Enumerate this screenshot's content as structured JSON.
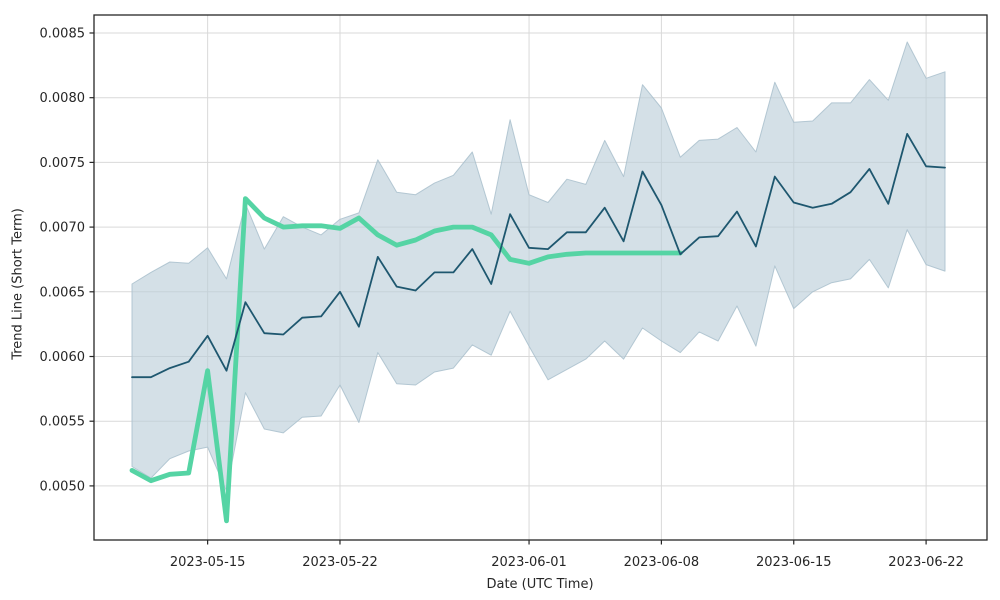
{
  "chart_data": {
    "type": "line",
    "title": "",
    "xlabel": "Date (UTC Time)",
    "ylabel": "Trend Line (Short Term)",
    "x": [
      "2023-05-11",
      "2023-05-12",
      "2023-05-13",
      "2023-05-14",
      "2023-05-15",
      "2023-05-16",
      "2023-05-17",
      "2023-05-18",
      "2023-05-19",
      "2023-05-20",
      "2023-05-21",
      "2023-05-22",
      "2023-05-23",
      "2023-05-24",
      "2023-05-25",
      "2023-05-26",
      "2023-05-27",
      "2023-05-28",
      "2023-05-29",
      "2023-05-30",
      "2023-05-31",
      "2023-06-01",
      "2023-06-02",
      "2023-06-03",
      "2023-06-04",
      "2023-06-05",
      "2023-06-06",
      "2023-06-07",
      "2023-06-08",
      "2023-06-09",
      "2023-06-10",
      "2023-06-11",
      "2023-06-12",
      "2023-06-13",
      "2023-06-14",
      "2023-06-15",
      "2023-06-16",
      "2023-06-17",
      "2023-06-18",
      "2023-06-19",
      "2023-06-20",
      "2023-06-21",
      "2023-06-22",
      "2023-06-23"
    ],
    "series": [
      {
        "name": "trend-line",
        "color": "#1e576f",
        "width": 1.8,
        "values": [
          0.00584,
          0.00584,
          0.00591,
          0.00596,
          0.00616,
          0.00589,
          0.00642,
          0.00618,
          0.00617,
          0.0063,
          0.00631,
          0.0065,
          0.00623,
          0.00677,
          0.00654,
          0.00651,
          0.00665,
          0.00665,
          0.00683,
          0.00656,
          0.0071,
          0.00684,
          0.00683,
          0.00696,
          0.00696,
          0.00715,
          0.00689,
          0.00743,
          0.00717,
          0.00679,
          0.00692,
          0.00693,
          0.00712,
          0.00685,
          0.00739,
          0.00719,
          0.00715,
          0.00718,
          0.00727,
          0.00745,
          0.00718,
          0.00772,
          0.00747,
          0.00746
        ]
      },
      {
        "name": "signal-line",
        "color": "#55d4a4",
        "width": 4.8,
        "values": [
          0.00512,
          0.00504,
          0.00509,
          0.0051,
          0.00589,
          0.00473,
          0.00722,
          0.00707,
          0.007,
          0.00701,
          0.00701,
          0.00699,
          0.00707,
          0.00694,
          0.00686,
          0.0069,
          0.00697,
          0.007,
          0.007,
          0.00694,
          0.00675,
          0.00672,
          0.00677,
          0.00679,
          0.0068,
          0.0068,
          0.0068,
          0.0068,
          0.0068,
          0.0068,
          null,
          null,
          null,
          null,
          null,
          null,
          null,
          null,
          null,
          null,
          null,
          null,
          null,
          null
        ]
      }
    ],
    "band": {
      "name": "confidence-band",
      "fill": "#b9cdd8",
      "fill_opacity": 0.62,
      "edge": "#a9bfcc",
      "upper": [
        0.00656,
        0.00665,
        0.00673,
        0.00672,
        0.00684,
        0.0066,
        0.00718,
        0.00683,
        0.00708,
        0.007,
        0.00694,
        0.00706,
        0.00711,
        0.00752,
        0.00727,
        0.00725,
        0.00734,
        0.0074,
        0.00758,
        0.0071,
        0.00783,
        0.00725,
        0.00719,
        0.00737,
        0.00733,
        0.00767,
        0.00739,
        0.0081,
        0.00792,
        0.00754,
        0.00767,
        0.00768,
        0.00777,
        0.00758,
        0.00812,
        0.00781,
        0.00782,
        0.00796,
        0.00796,
        0.00814,
        0.00798,
        0.00843,
        0.00815,
        0.0082
      ],
      "lower": [
        0.00515,
        0.00506,
        0.00521,
        0.00527,
        0.0053,
        0.00496,
        0.00572,
        0.00544,
        0.00541,
        0.00553,
        0.00554,
        0.00578,
        0.00549,
        0.00603,
        0.00579,
        0.00578,
        0.00588,
        0.00591,
        0.00609,
        0.00601,
        0.00635,
        0.00608,
        0.00582,
        0.0059,
        0.00598,
        0.00612,
        0.00598,
        0.00622,
        0.00612,
        0.00603,
        0.00619,
        0.00612,
        0.00639,
        0.00608,
        0.0067,
        0.00637,
        0.0065,
        0.00657,
        0.0066,
        0.00675,
        0.00653,
        0.00698,
        0.00671,
        0.00666
      ]
    },
    "xticks": [
      {
        "index": 4,
        "label": "2023-05-15"
      },
      {
        "index": 11,
        "label": "2023-05-22"
      },
      {
        "index": 21,
        "label": "2023-06-01"
      },
      {
        "index": 28,
        "label": "2023-06-08"
      },
      {
        "index": 35,
        "label": "2023-06-15"
      },
      {
        "index": 42,
        "label": "2023-06-22"
      }
    ],
    "yticks": [
      {
        "value": 0.005,
        "label": "0.0050"
      },
      {
        "value": 0.0055,
        "label": "0.0055"
      },
      {
        "value": 0.006,
        "label": "0.0060"
      },
      {
        "value": 0.0065,
        "label": "0.0065"
      },
      {
        "value": 0.007,
        "label": "0.0070"
      },
      {
        "value": 0.0075,
        "label": "0.0075"
      },
      {
        "value": 0.008,
        "label": "0.0080"
      },
      {
        "value": 0.0085,
        "label": "0.0085"
      }
    ],
    "ylim": [
      0.004582,
      0.008639
    ],
    "grid": true,
    "legend": "none",
    "colors": {
      "background": "#ffffff",
      "grid": "#d9d9d9",
      "spine": "#262626",
      "text": "#262626"
    }
  }
}
